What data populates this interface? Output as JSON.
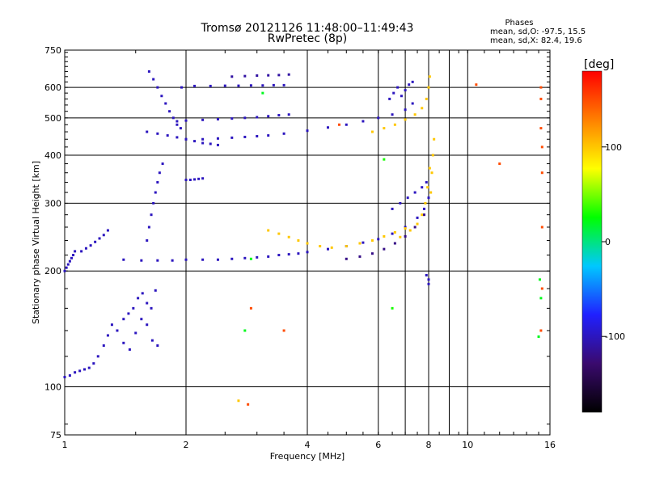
{
  "chart_data": {
    "type": "scatter",
    "title": "Tromsø 20121126 11:48:00–11:49:43",
    "subtitle": "RwPretec (8p)",
    "phase_info": {
      "heading": "Phases",
      "line_o": "mean, sd,O: -97.5, 15.5",
      "line_x": "mean, sd,X:  82.4, 19.6"
    },
    "xlabel": "Frequency [MHz]",
    "ylabel": "Stationary phase Virtual Height [km]",
    "xscale": "log",
    "yscale": "log",
    "xlim": [
      1,
      16
    ],
    "ylim": [
      75,
      750
    ],
    "xticks": [
      1,
      2,
      4,
      6,
      8,
      10,
      16
    ],
    "yticks": [
      75,
      100,
      200,
      300,
      400,
      500,
      600,
      750
    ],
    "xgrid": [
      2,
      4,
      6,
      7,
      8,
      9,
      10
    ],
    "ygrid": [
      100,
      200,
      300,
      400,
      500,
      600
    ],
    "colorbar": {
      "label": "[deg]",
      "range": [
        -180,
        180
      ],
      "ticks": [
        100,
        0,
        -100
      ],
      "stops": [
        "#000000",
        "#3a0a6e",
        "#2020ff",
        "#00c8ff",
        "#00ff00",
        "#ffff00",
        "#ff8000",
        "#ff0000"
      ]
    },
    "series": [
      {
        "phase": -100,
        "x": [
          1.0,
          1.03,
          1.06,
          1.09,
          1.12,
          1.15,
          1.18,
          1.21,
          1.25,
          1.28,
          1.31
        ],
        "y": [
          106,
          107,
          109,
          110,
          111,
          112,
          115,
          120,
          128,
          136,
          145
        ]
      },
      {
        "phase": -100,
        "x": [
          1.0,
          1.01,
          1.02,
          1.03,
          1.04,
          1.05,
          1.06
        ],
        "y": [
          200,
          204,
          208,
          212,
          216,
          220,
          225
        ]
      },
      {
        "phase": -100,
        "x": [
          1.1,
          1.13,
          1.16,
          1.19,
          1.22,
          1.25,
          1.28
        ],
        "y": [
          225,
          229,
          233,
          238,
          243,
          248,
          255
        ]
      },
      {
        "phase": -100,
        "x": [
          1.4,
          1.44,
          1.48,
          1.52,
          1.56,
          1.6,
          1.64,
          1.68
        ],
        "y": [
          150,
          155,
          160,
          170,
          175,
          165,
          160,
          178
        ]
      },
      {
        "phase": -100,
        "x": [
          1.35,
          1.4,
          1.45,
          1.5,
          1.55,
          1.6,
          1.65,
          1.7
        ],
        "y": [
          140,
          130,
          125,
          138,
          150,
          145,
          132,
          128
        ]
      },
      {
        "phase": -100,
        "x": [
          1.4,
          1.55,
          1.7,
          1.85,
          2.0,
          2.2,
          2.4,
          2.6,
          2.8,
          3.0,
          3.2,
          3.4,
          3.6,
          3.8,
          4.0,
          4.5,
          5.0,
          5.5,
          6.0,
          6.5,
          7.0,
          7.5,
          7.8,
          8.0
        ],
        "y": [
          214,
          213,
          213,
          213,
          214,
          214,
          214,
          215,
          216,
          217,
          218,
          220,
          221,
          222,
          224,
          228,
          232,
          237,
          242,
          250,
          260,
          275,
          290,
          310
        ]
      },
      {
        "phase": -100,
        "x": [
          1.6,
          1.62,
          1.64,
          1.66,
          1.68,
          1.7,
          1.72,
          1.75
        ],
        "y": [
          240,
          260,
          280,
          300,
          320,
          340,
          360,
          380
        ]
      },
      {
        "phase": -100,
        "x": [
          1.62,
          1.66,
          1.7,
          1.74,
          1.78,
          1.82,
          1.86,
          1.9,
          1.94
        ],
        "y": [
          660,
          630,
          600,
          570,
          545,
          520,
          500,
          480,
          470
        ]
      },
      {
        "phase": -100,
        "x": [
          1.6,
          1.7,
          1.8,
          1.9,
          2.0,
          2.1,
          2.2,
          2.3,
          2.4
        ],
        "y": [
          460,
          455,
          450,
          445,
          440,
          435,
          430,
          428,
          425
        ]
      },
      {
        "phase": -100,
        "x": [
          2.0,
          2.2,
          2.4,
          2.6,
          2.8,
          3.0,
          3.2,
          3.5,
          4.0,
          4.5,
          5.0,
          5.5,
          6.0,
          6.5,
          7.0,
          7.3
        ],
        "y": [
          440,
          440,
          442,
          444,
          446,
          448,
          450,
          455,
          463,
          472,
          480,
          490,
          500,
          510,
          525,
          545
        ]
      },
      {
        "phase": -100,
        "x": [
          1.9,
          2.0,
          2.2,
          2.4,
          2.6,
          2.8,
          3.0,
          3.2,
          3.4,
          3.6
        ],
        "y": [
          490,
          492,
          494,
          496,
          498,
          500,
          502,
          505,
          508,
          510
        ]
      },
      {
        "phase": -100,
        "x": [
          1.95,
          2.1,
          2.3,
          2.5,
          2.7,
          2.9,
          3.1,
          3.3,
          3.5
        ],
        "y": [
          600,
          605,
          605,
          606,
          606,
          607,
          607,
          608,
          608
        ]
      },
      {
        "phase": -110,
        "x": [
          2.6,
          2.8,
          3.0,
          3.2,
          3.4,
          3.6
        ],
        "y": [
          640,
          642,
          644,
          645,
          646,
          648
        ]
      },
      {
        "phase": -100,
        "x": [
          2.0,
          2.05,
          2.1,
          2.15,
          2.2
        ],
        "y": [
          345,
          345,
          346,
          347,
          348
        ]
      },
      {
        "phase": -100,
        "x": [
          6.4,
          6.55,
          6.7,
          6.85,
          7.0,
          7.15,
          7.3
        ],
        "y": [
          560,
          580,
          600,
          570,
          590,
          610,
          620
        ]
      },
      {
        "phase": 100,
        "x": [
          3.2,
          3.4,
          3.6,
          3.8,
          4.0,
          4.3,
          4.6,
          5.0,
          5.4,
          5.8,
          6.2,
          6.6,
          7.0
        ],
        "y": [
          255,
          250,
          245,
          240,
          236,
          232,
          230,
          232,
          236,
          240,
          246,
          252,
          258
        ]
      },
      {
        "phase": 100,
        "x": [
          5.8,
          6.2,
          6.6,
          7.0,
          7.4,
          7.7,
          7.9,
          8.0,
          8.05
        ],
        "y": [
          460,
          470,
          480,
          495,
          510,
          530,
          560,
          600,
          640
        ]
      },
      {
        "phase": 100,
        "x": [
          6.8,
          7.2,
          7.5,
          7.7,
          7.85,
          7.95,
          8.05
        ],
        "y": [
          245,
          255,
          265,
          280,
          300,
          330,
          370
        ]
      },
      {
        "phase": 100,
        "x": [
          8.1,
          8.15,
          8.2,
          8.25
        ],
        "y": [
          320,
          360,
          400,
          440
        ]
      },
      {
        "phase": -120,
        "x": [
          5.0,
          5.4,
          5.8,
          6.2,
          6.6,
          7.0,
          7.4,
          7.8
        ],
        "y": [
          215,
          218,
          222,
          228,
          236,
          246,
          260,
          280
        ]
      },
      {
        "phase": -100,
        "x": [
          6.5,
          6.8,
          7.1,
          7.4,
          7.7,
          7.9
        ],
        "y": [
          290,
          300,
          310,
          320,
          330,
          340
        ]
      },
      {
        "phase": 150,
        "x": [
          15.2,
          15.2,
          15.2,
          15.3,
          15.3,
          15.3,
          15.3,
          15.2
        ],
        "y": [
          600,
          560,
          470,
          420,
          360,
          260,
          180,
          140
        ]
      },
      {
        "phase": 150,
        "x": [
          10.5,
          12.0
        ],
        "y": [
          610,
          380
        ]
      },
      {
        "phase": 150,
        "x": [
          2.9,
          2.85,
          3.5,
          4.8
        ],
        "y": [
          160,
          90,
          140,
          480
        ]
      },
      {
        "phase": 20,
        "x": [
          15.1,
          15.2,
          15.0
        ],
        "y": [
          190,
          170,
          135
        ]
      },
      {
        "phase": 30,
        "x": [
          6.2,
          6.5
        ],
        "y": [
          390,
          160
        ]
      },
      {
        "phase": -100,
        "x": [
          7.9,
          8.0,
          8.0
        ],
        "y": [
          195,
          190,
          185
        ]
      },
      {
        "phase": 20,
        "x": [
          2.8,
          2.9,
          3.1
        ],
        "y": [
          140,
          215,
          580
        ]
      },
      {
        "phase": 100,
        "x": [
          2.7
        ],
        "y": [
          92
        ]
      }
    ]
  }
}
